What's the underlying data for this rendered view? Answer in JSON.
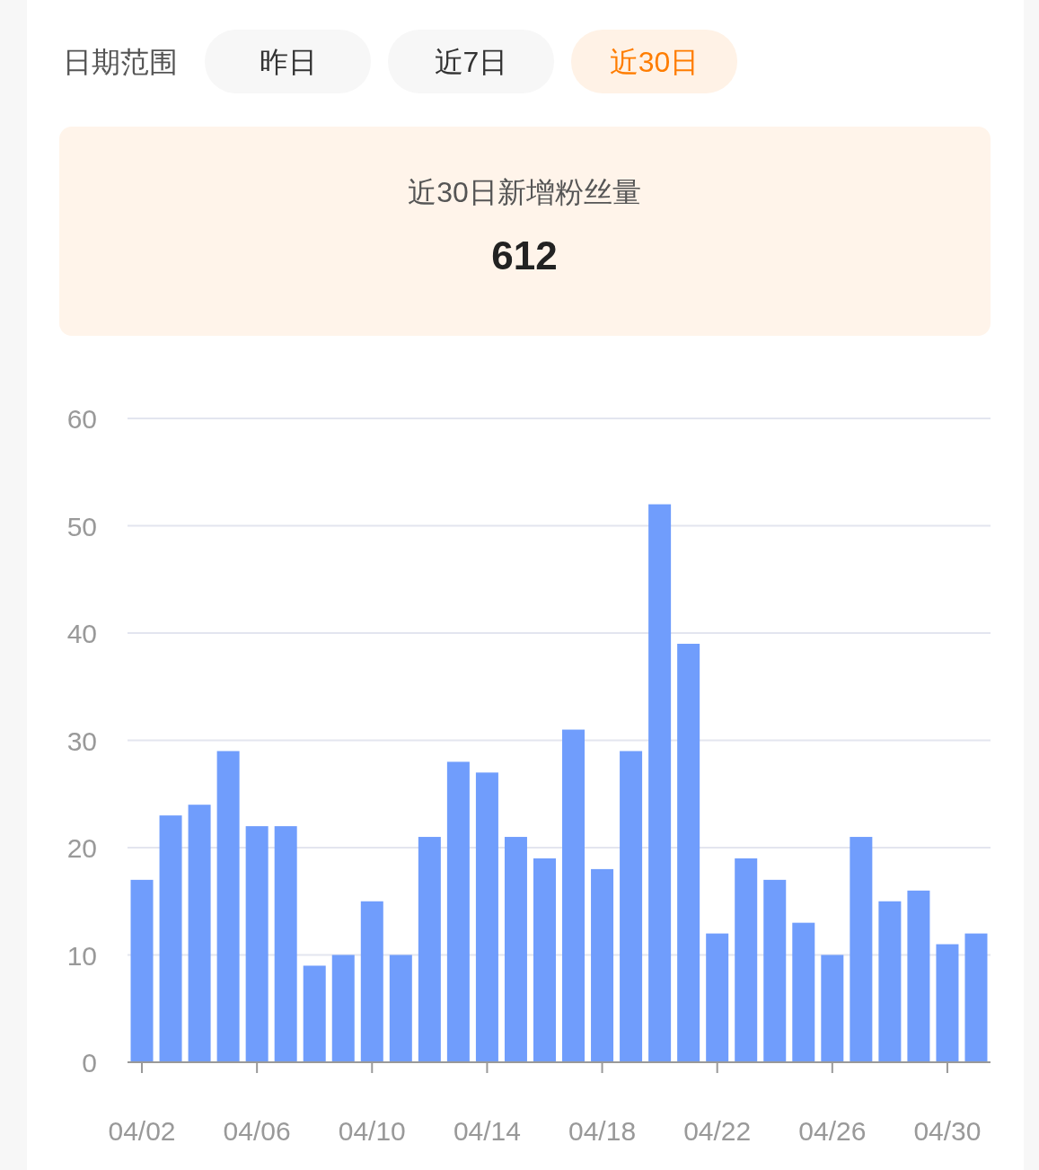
{
  "chart_data": [
    {
      "type": "other",
      "title": "日期范围",
      "categories": [
        "昨日",
        "近7日",
        "近30日"
      ],
      "colors": [
        "#f7f7f7",
        "#f7f7f7",
        "#fff2e6"
      ]
    },
    {
      "type": "other",
      "title": "近30日新增粉丝量",
      "annotations": [
        "612"
      ]
    },
    {
      "type": "bar",
      "categories": [
        "04/02",
        null,
        null,
        null,
        "04/06",
        null,
        null,
        null,
        "04/10",
        null,
        null,
        null,
        "04/14",
        null,
        null,
        null,
        "04/18",
        null,
        null,
        null,
        "04/22",
        null,
        null,
        null,
        "04/26",
        null,
        null,
        null,
        "04/30",
        null
      ],
      "values": [
        17,
        23,
        24,
        29,
        22,
        22,
        9,
        10,
        15,
        10,
        21,
        28,
        27,
        21,
        19,
        31,
        18,
        29,
        52,
        39,
        12,
        19,
        17,
        13,
        10,
        21,
        15,
        16,
        11,
        12
      ],
      "color": "#709dfc",
      "ylim": [
        0,
        60
      ],
      "yticks": [
        0,
        10,
        20,
        30,
        40,
        50,
        60
      ],
      "grid": "y"
    }
  ]
}
